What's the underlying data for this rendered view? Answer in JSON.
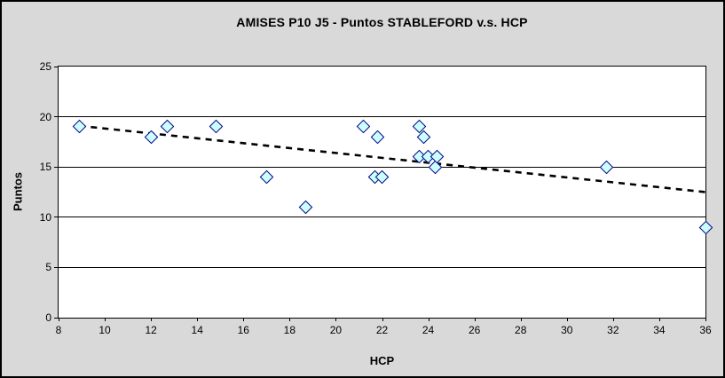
{
  "chart_data": {
    "type": "scatter",
    "title": "AMISES P10 J5 - Puntos STABLEFORD v.s. HCP",
    "xlabel": "HCP",
    "ylabel": "Puntos",
    "xlim": [
      8,
      36
    ],
    "ylim": [
      0,
      25
    ],
    "x_ticks": [
      8,
      10,
      12,
      14,
      16,
      18,
      20,
      22,
      24,
      26,
      28,
      30,
      32,
      34,
      36
    ],
    "y_ticks": [
      0,
      5,
      10,
      15,
      20,
      25
    ],
    "grid": "horizontal",
    "legend": "none",
    "series": [
      {
        "name": "Puntos STABLEFORD",
        "marker": "diamond",
        "marker_fill": "#CCFFFF",
        "marker_border": "#000080",
        "points": [
          [
            8.9,
            19
          ],
          [
            12,
            18
          ],
          [
            12.7,
            19
          ],
          [
            14.8,
            19
          ],
          [
            17,
            14
          ],
          [
            18.7,
            11
          ],
          [
            21.2,
            19
          ],
          [
            21.7,
            14
          ],
          [
            21.8,
            18
          ],
          [
            22,
            14
          ],
          [
            23.6,
            19
          ],
          [
            23.6,
            16
          ],
          [
            23.8,
            18
          ],
          [
            24,
            16
          ],
          [
            24.3,
            15
          ],
          [
            24.4,
            16
          ],
          [
            31.7,
            15
          ],
          [
            36,
            9
          ]
        ]
      }
    ],
    "trendline": {
      "type": "linear",
      "style": "dashed",
      "color": "#000000",
      "x_start": 8.9,
      "y_start": 19.1,
      "x_end": 36,
      "y_end": 12.5
    }
  },
  "colors": {
    "chart_background": "#D9D9D9",
    "plot_background": "#FFFFFF",
    "axis": "#000000"
  }
}
